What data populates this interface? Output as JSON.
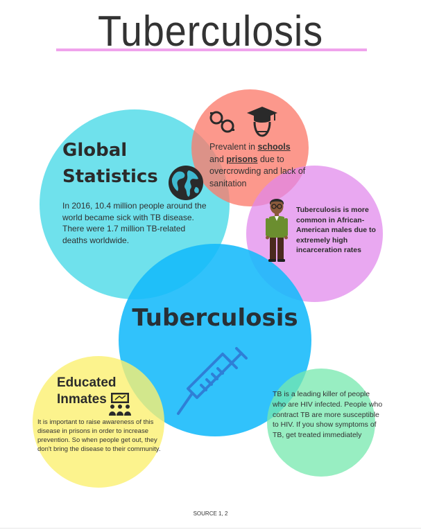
{
  "page": {
    "title": "Tuberculosis",
    "source": "SOURCE 1, 2"
  },
  "global_statistics": {
    "heading_line1": "Global",
    "heading_line2": "Statistics",
    "text": "In 2016, 10.4 million people around the world became sick with TB disease. There were 1.7 million TB-related deaths worldwide.",
    "icon": "globe-icon"
  },
  "schools_prisons": {
    "prefix": "Prevalent in ",
    "schools": "schools",
    "and": "and ",
    "prisons": "prisons",
    "suffix": " due to overcrowding and lack of sanitation",
    "icons": [
      "handcuffs-icon",
      "graduate-icon"
    ]
  },
  "african_american": {
    "text": "Tuberculosis is more common in African-American males due to extremely high incarceration rates",
    "icon": "man-icon"
  },
  "center": {
    "label": "Tuberculosis",
    "icon": "syringe-icon"
  },
  "educated_inmates": {
    "heading_line1": "Educated",
    "heading_line2": "Inmates",
    "text": "It is important to raise awareness of this disease in prisons in order to increase prevention. So when people get out, they don't bring the disease to their community.",
    "icon": "classroom-icon"
  },
  "hiv": {
    "text": "TB is a leading killer of people who are HIV infected. People who contract TB are more susceptible to HIV. If you show symptoms of TB, get treated immediately"
  },
  "colors": {
    "global": "#3fd7e6",
    "schools": "#fb7b6b",
    "male": "#e086ec",
    "center": "#14b9fb",
    "educated": "#fbf071",
    "hiv": "#75e8ad",
    "title_rule": "#f0a3ec"
  }
}
